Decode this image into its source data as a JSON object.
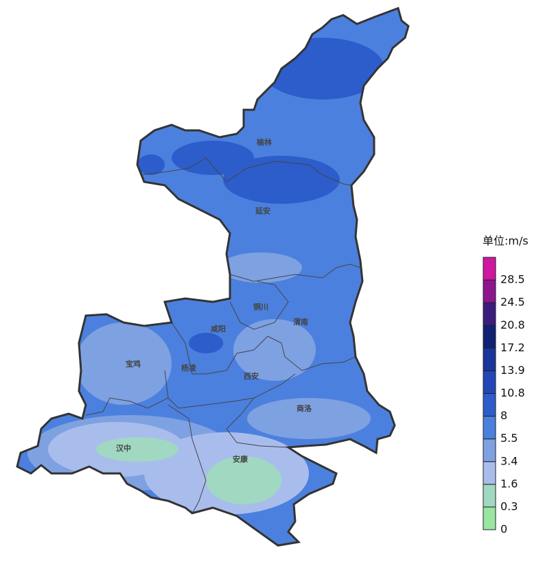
{
  "map": {
    "cities": [
      {
        "label": "榆林"
      },
      {
        "label": "延安"
      },
      {
        "label": "铜川"
      },
      {
        "label": "渭南"
      },
      {
        "label": "咸阳"
      },
      {
        "label": "宝鸡"
      },
      {
        "label": "杨凌"
      },
      {
        "label": "西安"
      },
      {
        "label": "商洛"
      },
      {
        "label": "汉中"
      },
      {
        "label": "安康"
      }
    ]
  },
  "legend": {
    "title": "单位:m/s",
    "colors": [
      "#99e6a2",
      "#a0d8c2",
      "#a9bdec",
      "#7ea1e2",
      "#4c80de",
      "#2d5dca",
      "#2347b6",
      "#1a359c",
      "#0f2274",
      "#3b1d7e",
      "#8d168e",
      "#d0179f"
    ],
    "ticks": [
      0,
      0.3,
      1.6,
      3.4,
      5.5,
      8,
      10.8,
      13.9,
      17.2,
      20.8,
      24.5,
      28.5
    ]
  }
}
